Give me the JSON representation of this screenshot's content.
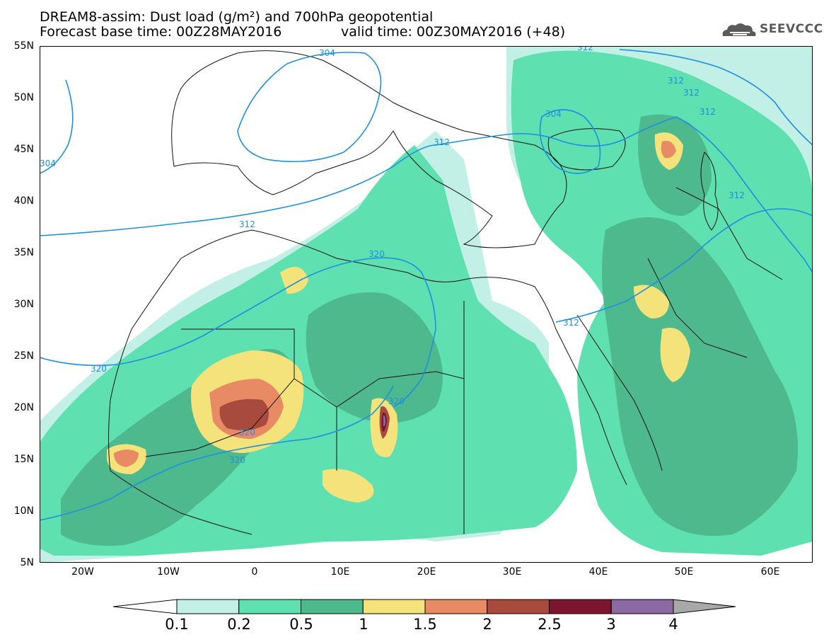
{
  "title": {
    "line1": "DREAM8-assim: Dust load (g/m²) and 700hPa geopotential",
    "line2_left": "Forecast base time: 00Z28MAY2016",
    "line2_right": "valid time: 00Z30MAY2016 (+48)"
  },
  "logo": {
    "text": "SEEVCCC",
    "icon": "cloud-icon"
  },
  "axes": {
    "lat_labels": [
      "55N",
      "50N",
      "45N",
      "40N",
      "35N",
      "30N",
      "25N",
      "20N",
      "15N",
      "10N",
      "5N"
    ],
    "lon_labels": [
      "20W",
      "10W",
      "0",
      "10E",
      "20E",
      "30E",
      "40E",
      "50E",
      "60E"
    ]
  },
  "contour_labels": {
    "c304_top": "304",
    "c304_left": "304",
    "c312_topright": "312",
    "c304_caspian": "304",
    "c312_a": "312",
    "c312_b": "312",
    "c312_c": "312",
    "c312_italy": "312",
    "c312_spain": "312",
    "c312_iran": "312",
    "c312_egypt": "312",
    "c320_libya": "320",
    "c320_wsahara": "320",
    "c320_chad": "320",
    "c320_niger": "320",
    "c320_mali": "320"
  },
  "colorbar": {
    "labels": [
      "0.1",
      "0.2",
      "0.5",
      "1",
      "1.5",
      "2",
      "2.5",
      "3",
      "4"
    ],
    "colors": [
      "#c2efe6",
      "#5ee0b0",
      "#4fb98e",
      "#f4e27a",
      "#e88b65",
      "#a94a3e",
      "#7c1530",
      "#8a6aa0",
      "#a8a8a8"
    ]
  },
  "map_colors": {
    "light": "#c2efe6",
    "medium": "#5ee0b0",
    "dark": "#4fb98e",
    "yellow": "#f4e27a",
    "orange": "#e88b65",
    "brown": "#a94a3e",
    "maroon": "#7c1530",
    "purple": "#8a6aa0",
    "contour": "#1e90e0"
  }
}
